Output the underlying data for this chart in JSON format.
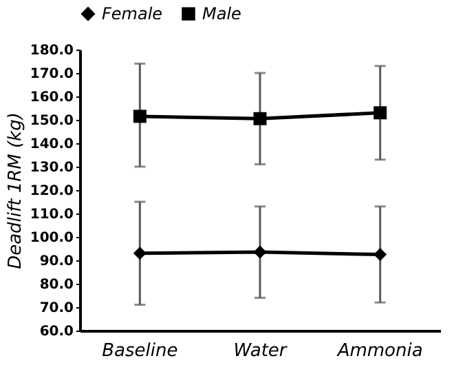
{
  "chart_data": {
    "type": "line",
    "ylabel": "Deadlift 1RM (kg)",
    "categories": [
      "Baseline",
      "Water",
      "Ammonia"
    ],
    "series": [
      {
        "name": "Female",
        "color": "#000000",
        "marker": "diamond",
        "values": [
          93,
          93.5,
          92.5
        ],
        "errors": [
          [
            71,
            115
          ],
          [
            74,
            113
          ],
          [
            72,
            113
          ]
        ]
      },
      {
        "name": "Male",
        "color": "#000000",
        "marker": "square",
        "values": [
          151.5,
          150.5,
          153
        ],
        "errors": [
          [
            130,
            174
          ],
          [
            131,
            170
          ],
          [
            133,
            173
          ]
        ]
      }
    ],
    "ylim": [
      60,
      180
    ],
    "yticks": [
      {
        "value": 60,
        "label": "60.0"
      },
      {
        "value": 70,
        "label": "70.0"
      },
      {
        "value": 80,
        "label": "80.0"
      },
      {
        "value": 90,
        "label": "90.0"
      },
      {
        "value": 100,
        "label": "100.0"
      },
      {
        "value": 110,
        "label": "110.0"
      },
      {
        "value": 120,
        "label": "120.0"
      },
      {
        "value": 130,
        "label": "130.0"
      },
      {
        "value": 140,
        "label": "140.0"
      },
      {
        "value": 150,
        "label": "150.0"
      },
      {
        "value": 160,
        "label": "160.0"
      },
      {
        "value": 170,
        "label": "170.0"
      },
      {
        "value": 180,
        "label": "180.0"
      }
    ],
    "grid": false,
    "legend": "top",
    "line_style": "solid"
  }
}
